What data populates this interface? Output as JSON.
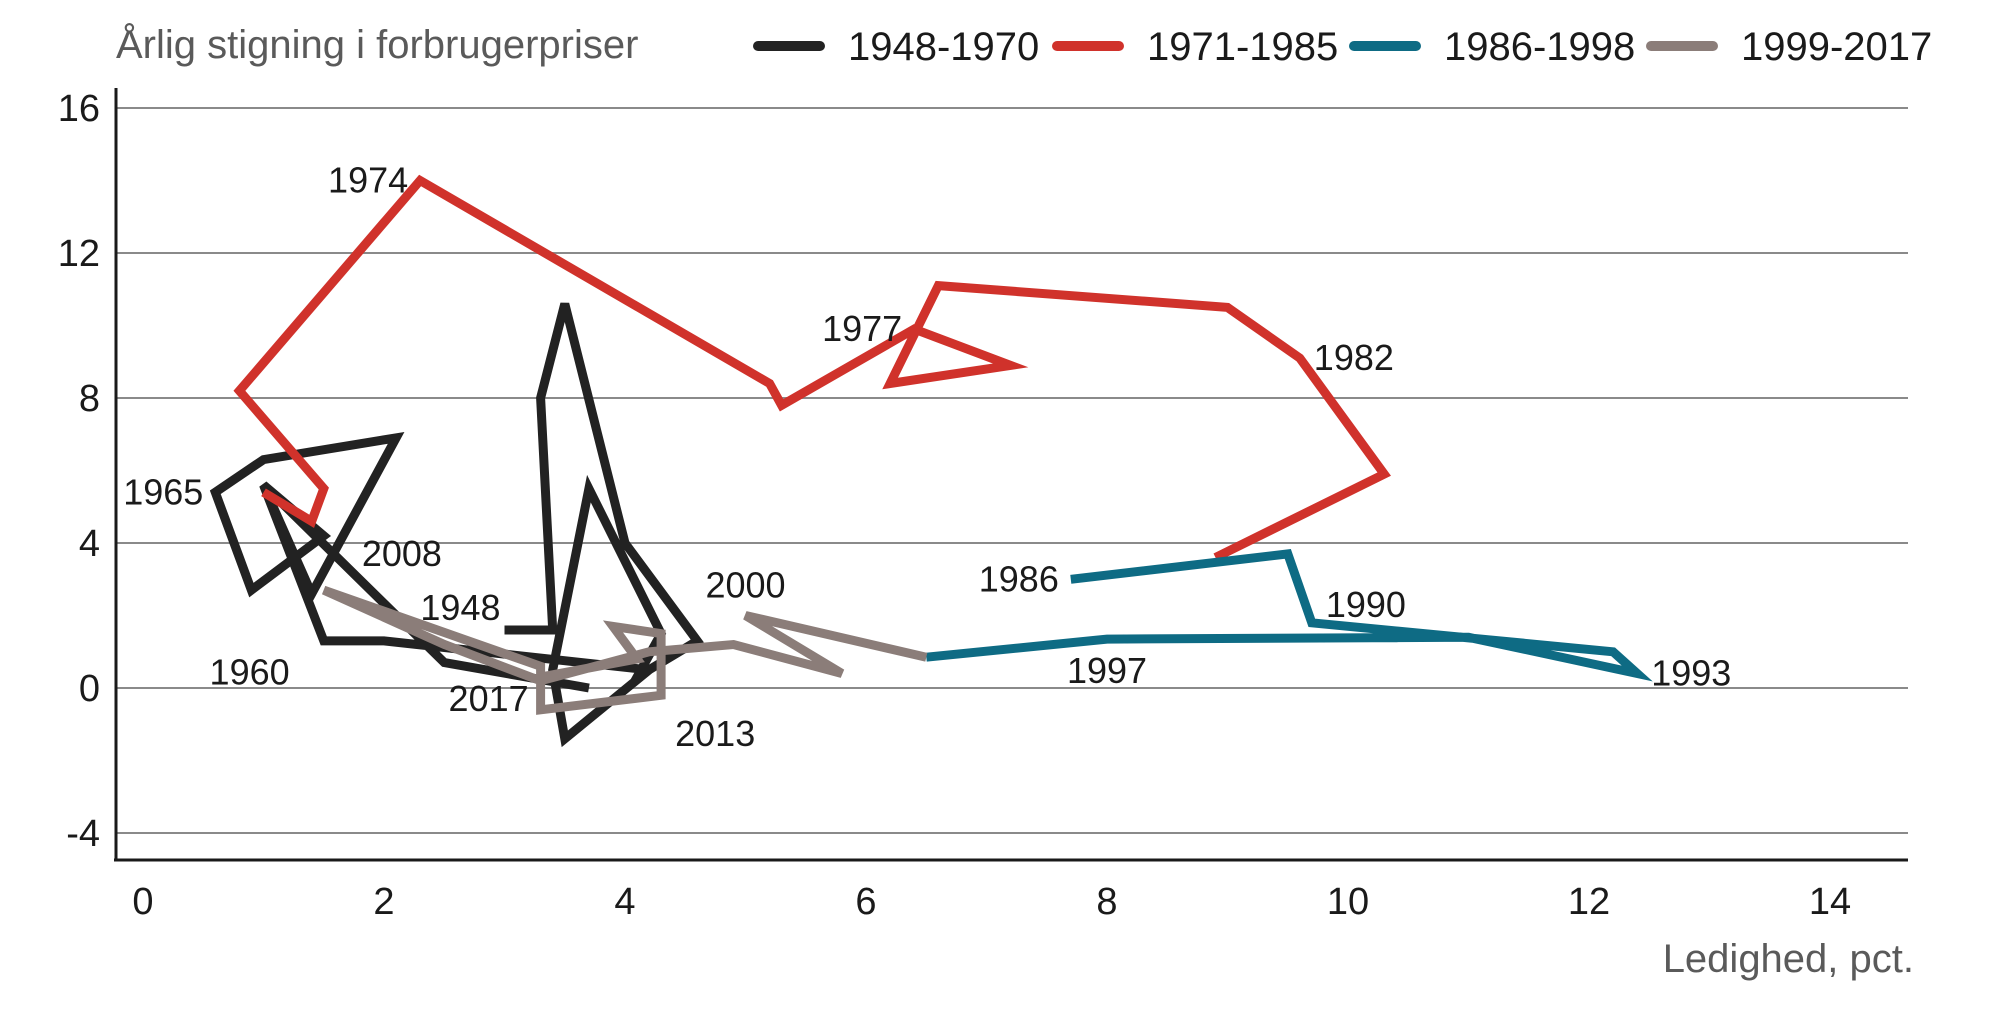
{
  "chart_data": {
    "type": "line",
    "title": "",
    "ylabel": "Årlig stigning i forbrugerpriser",
    "xlabel": "Ledighed, pct.",
    "xlim": [
      0,
      14
    ],
    "ylim": [
      -5,
      16
    ],
    "xticks": [
      0,
      2,
      4,
      6,
      8,
      10,
      12,
      14
    ],
    "yticks": [
      -4,
      0,
      4,
      8,
      12,
      16
    ],
    "grid": "horizontal",
    "legend_position": "top-right",
    "series": [
      {
        "name": "1948-1970",
        "color": "#222222",
        "points": [
          [
            3.0,
            1.6
          ],
          [
            3.4,
            1.6
          ],
          [
            3.3,
            8.0
          ],
          [
            3.5,
            10.6
          ],
          [
            4.0,
            4.0
          ],
          [
            4.6,
            1.3
          ],
          [
            4.1,
            0.3
          ],
          [
            4.3,
            1.5
          ],
          [
            3.7,
            5.5
          ],
          [
            3.4,
            0.5
          ],
          [
            3.5,
            -1.4
          ],
          [
            4.2,
            0.5
          ],
          [
            2.0,
            1.3
          ],
          [
            1.5,
            1.3
          ],
          [
            1.0,
            5.6
          ],
          [
            1.5,
            4.2
          ],
          [
            0.9,
            2.7
          ],
          [
            0.6,
            5.4
          ],
          [
            1.0,
            6.3
          ],
          [
            2.1,
            6.9
          ],
          [
            1.4,
            2.6
          ],
          [
            1.0,
            5.6
          ],
          [
            2.5,
            0.7
          ],
          [
            3.7,
            0.0
          ]
        ]
      },
      {
        "name": "1971-1985",
        "color": "#d0322b",
        "points": [
          [
            1.0,
            5.4
          ],
          [
            1.4,
            4.6
          ],
          [
            1.5,
            5.5
          ],
          [
            0.8,
            8.2
          ],
          [
            2.3,
            14.0
          ],
          [
            5.2,
            8.4
          ],
          [
            5.3,
            7.8
          ],
          [
            6.4,
            9.9
          ],
          [
            7.2,
            8.9
          ],
          [
            6.2,
            8.4
          ],
          [
            6.6,
            11.1
          ],
          [
            9.0,
            10.5
          ],
          [
            9.6,
            9.1
          ],
          [
            10.3,
            5.9
          ],
          [
            8.9,
            3.6
          ]
        ]
      },
      {
        "name": "1986-1998",
        "color": "#0e6b84",
        "points": [
          [
            7.7,
            3.0
          ],
          [
            9.5,
            3.7
          ],
          [
            9.7,
            1.8
          ],
          [
            12.2,
            1.0
          ],
          [
            12.4,
            0.4
          ],
          [
            11.0,
            1.4
          ],
          [
            8.0,
            1.35
          ],
          [
            6.5,
            0.85
          ]
        ]
      },
      {
        "name": "1999-2017",
        "color": "#8b7d79",
        "points": [
          [
            6.5,
            0.85
          ],
          [
            5.0,
            2.0
          ],
          [
            5.8,
            0.4
          ],
          [
            4.9,
            1.2
          ],
          [
            4.2,
            1.0
          ],
          [
            3.3,
            0.2
          ],
          [
            2.5,
            1.2
          ],
          [
            1.5,
            2.7
          ],
          [
            3.3,
            0.6
          ],
          [
            3.3,
            -0.6
          ],
          [
            4.3,
            -0.2
          ],
          [
            4.3,
            1.5
          ],
          [
            3.9,
            1.7
          ],
          [
            4.1,
            0.8
          ],
          [
            3.3,
            0.3
          ]
        ]
      }
    ],
    "annotations": [
      {
        "text": "1974",
        "x": 2.3,
        "y": 14.0,
        "pos": "left"
      },
      {
        "text": "1977",
        "x": 6.4,
        "y": 9.9,
        "pos": "left"
      },
      {
        "text": "1982",
        "x": 9.6,
        "y": 9.1,
        "pos": "right"
      },
      {
        "text": "1965",
        "x": 0.6,
        "y": 5.4,
        "pos": "left"
      },
      {
        "text": "2008",
        "x": 1.7,
        "y": 3.7,
        "pos": "right"
      },
      {
        "text": "1948",
        "x": 3.0,
        "y": 1.6,
        "pos": "left-above"
      },
      {
        "text": "1960",
        "x": 1.3,
        "y": 1.2,
        "pos": "left-below"
      },
      {
        "text": "2017",
        "x": 3.3,
        "y": -0.3,
        "pos": "left"
      },
      {
        "text": "2013",
        "x": 4.3,
        "y": -0.6,
        "pos": "right-below"
      },
      {
        "text": "2000",
        "x": 5.0,
        "y": 2.0,
        "pos": "above"
      },
      {
        "text": "1986",
        "x": 7.7,
        "y": 3.0,
        "pos": "left"
      },
      {
        "text": "1990",
        "x": 9.7,
        "y": 1.8,
        "pos": "right-above"
      },
      {
        "text": "1997",
        "x": 8.0,
        "y": 1.35,
        "pos": "below"
      },
      {
        "text": "1993",
        "x": 12.4,
        "y": 0.4,
        "pos": "right"
      }
    ]
  }
}
